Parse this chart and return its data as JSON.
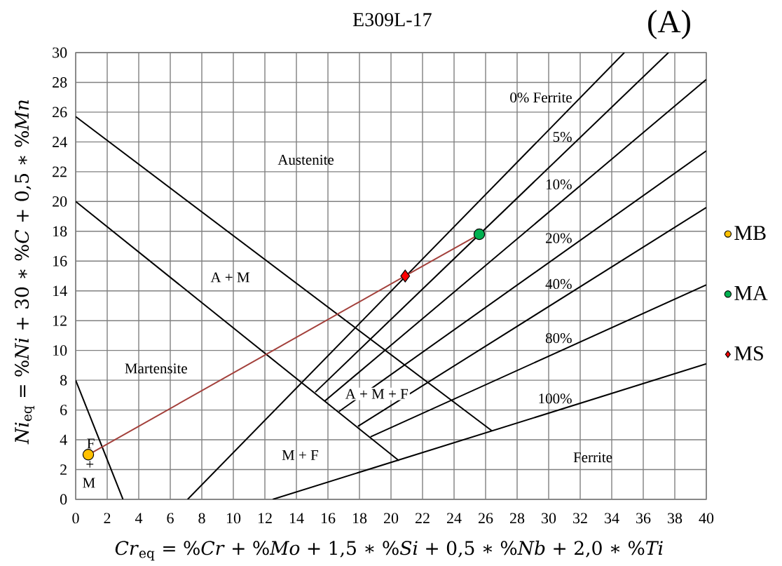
{
  "chart_data": {
    "type": "line",
    "title": "E309L-17",
    "xlabel": "*Cr*$_{eq}$ = %*Cr* + %*Mo* + 1,5 ∗ %*Si* + 0,5 ∗ %*Nb* + 2,0 ∗ %*Ti*",
    "ylabel": "*Ni*$_{eq}$ = %*Ni* + 30 ∗ %*C* + 0,5 ∗ %*Mn*",
    "xlim": [
      0,
      40
    ],
    "ylim": [
      0,
      30
    ],
    "xticks": [
      0,
      2,
      4,
      6,
      8,
      10,
      12,
      14,
      16,
      18,
      20,
      22,
      24,
      26,
      28,
      30,
      32,
      34,
      36,
      38,
      40
    ],
    "yticks": [
      0,
      2,
      4,
      6,
      8,
      10,
      12,
      14,
      16,
      18,
      20,
      22,
      24,
      26,
      28,
      30
    ],
    "grid": true,
    "legend": "right",
    "series": [
      {
        "color": "#000000",
        "x": [
          0,
          3
        ],
        "values": [
          8,
          0
        ]
      },
      {
        "color": "#000000",
        "x": [
          0,
          20.5
        ],
        "values": [
          20,
          2.6
        ]
      },
      {
        "color": "#000000",
        "x": [
          0,
          26.4
        ],
        "values": [
          25.7,
          4.6
        ]
      },
      {
        "name": "0% Ferrite",
        "color": "#000000",
        "x": [
          7.1,
          34.8
        ],
        "values": [
          0,
          30
        ]
      },
      {
        "name": "5%",
        "color": "#000000",
        "x": [
          15.2,
          37.6
        ],
        "values": [
          7.2,
          30
        ]
      },
      {
        "name": "10%",
        "color": "#000000",
        "x": [
          15.8,
          40
        ],
        "values": [
          6.6,
          28.2
        ]
      },
      {
        "name": "20%",
        "color": "#000000",
        "x": [
          16.7,
          40
        ],
        "values": [
          5.9,
          23.4
        ]
      },
      {
        "name": "40%",
        "color": "#000000",
        "x": [
          17.9,
          40
        ],
        "values": [
          4.9,
          19.6
        ]
      },
      {
        "name": "80%",
        "color": "#000000",
        "x": [
          18.7,
          40
        ],
        "values": [
          4.2,
          14.4
        ]
      },
      {
        "name": "100%",
        "color": "#000000",
        "x": [
          12.5,
          40
        ],
        "values": [
          0,
          9.1
        ]
      },
      {
        "color": "#a3403b",
        "x": [
          0.8,
          20.9,
          25.6
        ],
        "values": [
          3.0,
          15.0,
          17.8
        ]
      },
      {
        "type": "scatter",
        "name": "MB",
        "color": "#ffc000",
        "marker": "circle",
        "x": [
          0.8
        ],
        "values": [
          3.0
        ]
      },
      {
        "type": "scatter",
        "name": "MA",
        "color": "#00b050",
        "marker": "circle",
        "x": [
          25.6
        ],
        "values": [
          17.8
        ]
      },
      {
        "type": "scatter",
        "name": "MS",
        "color": "#ff0000",
        "marker": "diamond",
        "x": [
          20.9
        ],
        "values": [
          15.0
        ]
      }
    ],
    "annotations": [
      "Austenite",
      "A + M",
      "Martensite",
      "A + M + F",
      "M + F",
      "Ferrite",
      "F",
      "+",
      "M",
      "(A)"
    ]
  }
}
